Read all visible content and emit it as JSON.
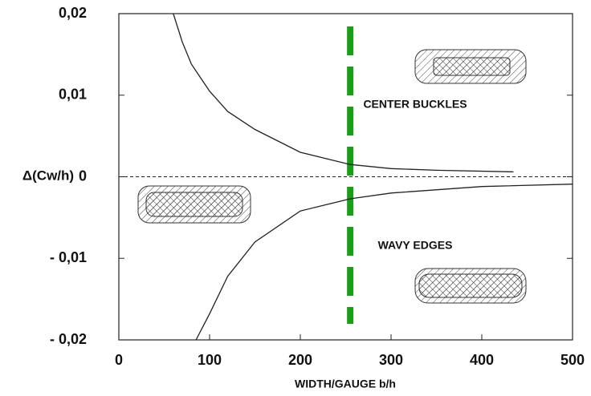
{
  "chart_data": {
    "type": "line",
    "xlabel": "WIDTH/GAUGE b/h",
    "ylabel": "Δ(Cw/h)",
    "xlim": [
      0,
      500
    ],
    "xticks": [
      0,
      100,
      200,
      300,
      400,
      500
    ],
    "ylim": [
      -0.02,
      0.02
    ],
    "yticks": [
      {
        "value": -0.02,
        "label": "- 0,02"
      },
      {
        "value": -0.01,
        "label": "- 0,01"
      },
      0,
      {
        "value": 0.01,
        "label": "0,01"
      },
      {
        "value": 0.02,
        "label": "0,02"
      }
    ],
    "series": [
      {
        "color": "#222222",
        "x": [
          60,
          70,
          80,
          100,
          120,
          150,
          200,
          255,
          300,
          350,
          435
        ],
        "values": [
          0.02,
          0.0165,
          0.0138,
          0.0105,
          0.008,
          0.0058,
          0.003,
          0.0015,
          0.001,
          0.0008,
          0.0006
        ]
      },
      {
        "color": "#222222",
        "x": [
          85,
          100,
          120,
          150,
          200,
          255,
          300,
          400,
          500
        ],
        "values": [
          -0.02,
          -0.0168,
          -0.0122,
          -0.008,
          -0.0042,
          -0.0027,
          -0.002,
          -0.0012,
          -0.0009
        ]
      }
    ],
    "hline": 0,
    "vline": {
      "x": 255,
      "color": "#1a9e1a"
    },
    "annotations": [
      {
        "text": "CENTER BUCKLES",
        "x": 330,
        "y": 0.0088
      },
      {
        "text": "WAVY EDGES",
        "x": 330,
        "y": -0.0085
      }
    ]
  }
}
